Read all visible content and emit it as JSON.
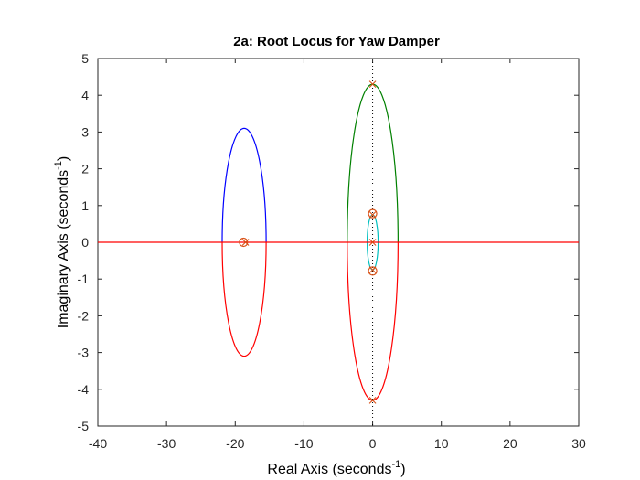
{
  "chart_data": {
    "type": "line",
    "title": "2a: Root Locus for Yaw Damper",
    "xlabel": "Real Axis (seconds",
    "ylabel": "Imaginary Axis (seconds",
    "label_sup": "-1",
    "label_close": ")",
    "xlim": [
      -40,
      30
    ],
    "ylim": [
      -5,
      5
    ],
    "xticks": [
      "-40",
      "-30",
      "-20",
      "-10",
      "0",
      "10",
      "20",
      "30"
    ],
    "yticks": [
      "5",
      "4",
      "3",
      "2",
      "1",
      "0",
      "-1",
      "-2",
      "-3",
      "-4",
      "-5"
    ],
    "grid": false,
    "colors": {
      "blue": "#0000ff",
      "red": "#ff0000",
      "green": "#008000",
      "cyan": "#00bfbf",
      "marker": "#d95319",
      "axis": "#262626"
    },
    "series": [
      {
        "color": "blue",
        "shape": "upper-loop",
        "center": [
          -18.7,
          0
        ],
        "rx": 3.2,
        "ry": 3.1
      },
      {
        "color": "red",
        "shape": "lower-loop",
        "center": [
          -18.7,
          0
        ],
        "rx": 3.2,
        "ry": 3.1
      },
      {
        "color": "green",
        "shape": "upper-loop",
        "center": [
          0,
          0
        ],
        "rx": 3.7,
        "ry": 4.3
      },
      {
        "color": "red",
        "shape": "lower-loop",
        "center": [
          0,
          0
        ],
        "rx": 3.7,
        "ry": 4.3
      },
      {
        "color": "cyan",
        "shape": "ellipse",
        "center": [
          0,
          0
        ],
        "rx": 0.8,
        "ry": 0.75
      },
      {
        "color": "red",
        "shape": "real-axis",
        "x": [
          -40,
          30
        ],
        "y": [
          0,
          0
        ]
      }
    ],
    "poles": [
      [
        -18.5,
        0
      ],
      [
        0,
        4.3
      ],
      [
        0,
        -4.3
      ],
      [
        0,
        0.75
      ],
      [
        0,
        -0.75
      ],
      [
        0,
        0
      ]
    ],
    "zeros": [
      [
        -18.8,
        0
      ],
      [
        0,
        0.78
      ],
      [
        0,
        -0.78
      ]
    ]
  }
}
